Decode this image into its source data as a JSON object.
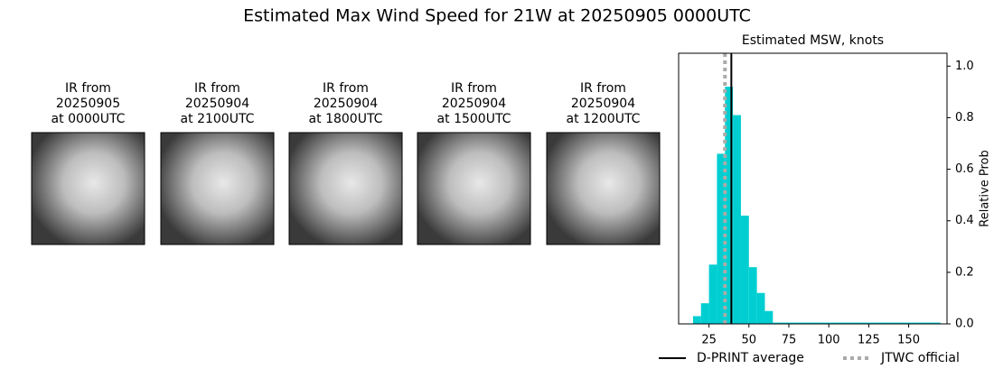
{
  "title": "Estimated Max Wind Speed for 21W at 20250905 0000UTC",
  "panels": [
    {
      "label": [
        "IR from",
        "20250905",
        "at 0000UTC"
      ]
    },
    {
      "label": [
        "IR from",
        "20250904",
        "at 2100UTC"
      ]
    },
    {
      "label": [
        "IR from",
        "20250904",
        "at 1800UTC"
      ]
    },
    {
      "label": [
        "IR from",
        "20250904",
        "at 1500UTC"
      ]
    },
    {
      "label": [
        "IR from",
        "20250904",
        "at 1200UTC"
      ]
    }
  ],
  "chart_data": {
    "type": "histogram",
    "title": "Estimated MSW, knots",
    "ylabel": "Relative Prob",
    "bins": [
      15,
      20,
      25,
      30,
      35,
      40,
      45,
      50,
      55,
      60,
      65,
      70,
      75,
      80,
      85,
      90,
      95,
      100,
      105,
      110,
      115,
      120,
      125,
      130,
      135,
      140,
      145,
      150,
      155,
      160,
      165,
      170
    ],
    "values": [
      0.03,
      0.08,
      0.23,
      0.66,
      0.92,
      0.81,
      0.42,
      0.22,
      0.12,
      0.05,
      0.005,
      0.005,
      0.005,
      0.005,
      0.005,
      0.005,
      0.005,
      0.005,
      0.005,
      0.005,
      0.005,
      0.005,
      0.005,
      0.005,
      0.005,
      0.005,
      0.005,
      0.005,
      0.005,
      0.005,
      0.005
    ],
    "color": "#00ced1",
    "xlim": [
      6,
      174
    ],
    "xticks": [
      25,
      50,
      75,
      100,
      125,
      150
    ],
    "ylim": [
      0,
      1.05
    ],
    "yticks": [
      {
        "value": 0,
        "label": "0.0"
      },
      {
        "value": 0.2,
        "label": "0.2"
      },
      {
        "value": 0.4,
        "label": "0.4"
      },
      {
        "value": 0.6,
        "label": "0.6"
      },
      {
        "value": 0.8,
        "label": "0.8"
      },
      {
        "value": 1.0,
        "label": "1.0"
      }
    ],
    "lines": [
      {
        "name": "D-PRINT average",
        "value": 39,
        "color": "#000000",
        "style": "solid"
      },
      {
        "name": "JTWC official",
        "value": 35,
        "color": "#aaaaaa",
        "style": "dotted"
      }
    ]
  }
}
